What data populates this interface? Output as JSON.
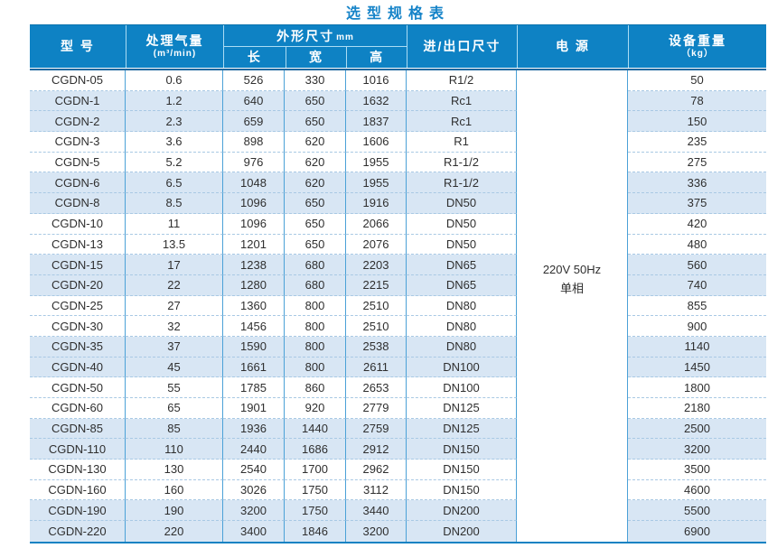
{
  "title": "选型规格表",
  "colors": {
    "header_bg": "#0e82c4",
    "title_text": "#1583c8",
    "row_stripe": "#d8e6f4",
    "grid_line": "#4ba1d7",
    "dashed_line": "#a9c9e4",
    "bottom_border": "#1182c3",
    "header_text": "#ffffff"
  },
  "table": {
    "headers": {
      "model": "型 号",
      "capacity": "处理气量",
      "capacity_unit": "(m³/min)",
      "dimensions": "外形尺寸",
      "dimensions_unit": "mm",
      "length": "长",
      "width": "宽",
      "height": "高",
      "inlet_outlet": "进/出口尺寸",
      "power": "电 源",
      "weight": "设备重量",
      "weight_unit": "（kg）"
    },
    "power_value_line1": "220V 50Hz",
    "power_value_line2": "单相",
    "rows": [
      {
        "model": "CGDN-05",
        "capacity": "0.6",
        "length": "526",
        "width": "330",
        "height": "1016",
        "port": "R1/2",
        "weight": "50"
      },
      {
        "model": "CGDN-1",
        "capacity": "1.2",
        "length": "640",
        "width": "650",
        "height": "1632",
        "port": "Rc1",
        "weight": "78"
      },
      {
        "model": "CGDN-2",
        "capacity": "2.3",
        "length": "659",
        "width": "650",
        "height": "1837",
        "port": "Rc1",
        "weight": "150"
      },
      {
        "model": "CGDN-3",
        "capacity": "3.6",
        "length": "898",
        "width": "620",
        "height": "1606",
        "port": "R1",
        "weight": "235"
      },
      {
        "model": "CGDN-5",
        "capacity": "5.2",
        "length": "976",
        "width": "620",
        "height": "1955",
        "port": "R1-1/2",
        "weight": "275"
      },
      {
        "model": "CGDN-6",
        "capacity": "6.5",
        "length": "1048",
        "width": "620",
        "height": "1955",
        "port": "R1-1/2",
        "weight": "336"
      },
      {
        "model": "CGDN-8",
        "capacity": "8.5",
        "length": "1096",
        "width": "650",
        "height": "1916",
        "port": "DN50",
        "weight": "375"
      },
      {
        "model": "CGDN-10",
        "capacity": "11",
        "length": "1096",
        "width": "650",
        "height": "2066",
        "port": "DN50",
        "weight": "420"
      },
      {
        "model": "CGDN-13",
        "capacity": "13.5",
        "length": "1201",
        "width": "650",
        "height": "2076",
        "port": "DN50",
        "weight": "480"
      },
      {
        "model": "CGDN-15",
        "capacity": "17",
        "length": "1238",
        "width": "680",
        "height": "2203",
        "port": "DN65",
        "weight": "560"
      },
      {
        "model": "CGDN-20",
        "capacity": "22",
        "length": "1280",
        "width": "680",
        "height": "2215",
        "port": "DN65",
        "weight": "740"
      },
      {
        "model": "CGDN-25",
        "capacity": "27",
        "length": "1360",
        "width": "800",
        "height": "2510",
        "port": "DN80",
        "weight": "855"
      },
      {
        "model": "CGDN-30",
        "capacity": "32",
        "length": "1456",
        "width": "800",
        "height": "2510",
        "port": "DN80",
        "weight": "900"
      },
      {
        "model": "CGDN-35",
        "capacity": "37",
        "length": "1590",
        "width": "800",
        "height": "2538",
        "port": "DN80",
        "weight": "1140"
      },
      {
        "model": "CGDN-40",
        "capacity": "45",
        "length": "1661",
        "width": "800",
        "height": "2611",
        "port": "DN100",
        "weight": "1450"
      },
      {
        "model": "CGDN-50",
        "capacity": "55",
        "length": "1785",
        "width": "860",
        "height": "2653",
        "port": "DN100",
        "weight": "1800"
      },
      {
        "model": "CGDN-60",
        "capacity": "65",
        "length": "1901",
        "width": "920",
        "height": "2779",
        "port": "DN125",
        "weight": "2180"
      },
      {
        "model": "CGDN-85",
        "capacity": "85",
        "length": "1936",
        "width": "1440",
        "height": "2759",
        "port": "DN125",
        "weight": "2500"
      },
      {
        "model": "CGDN-110",
        "capacity": "110",
        "length": "2440",
        "width": "1686",
        "height": "2912",
        "port": "DN150",
        "weight": "3200"
      },
      {
        "model": "CGDN-130",
        "capacity": "130",
        "length": "2540",
        "width": "1700",
        "height": "2962",
        "port": "DN150",
        "weight": "3500"
      },
      {
        "model": "CGDN-160",
        "capacity": "160",
        "length": "3026",
        "width": "1750",
        "height": "3112",
        "port": "DN150",
        "weight": "4600"
      },
      {
        "model": "CGDN-190",
        "capacity": "190",
        "length": "3200",
        "width": "1750",
        "height": "3440",
        "port": "DN200",
        "weight": "5500"
      },
      {
        "model": "CGDN-220",
        "capacity": "220",
        "length": "3400",
        "width": "1846",
        "height": "3200",
        "port": "DN200",
        "weight": "6900"
      }
    ]
  }
}
